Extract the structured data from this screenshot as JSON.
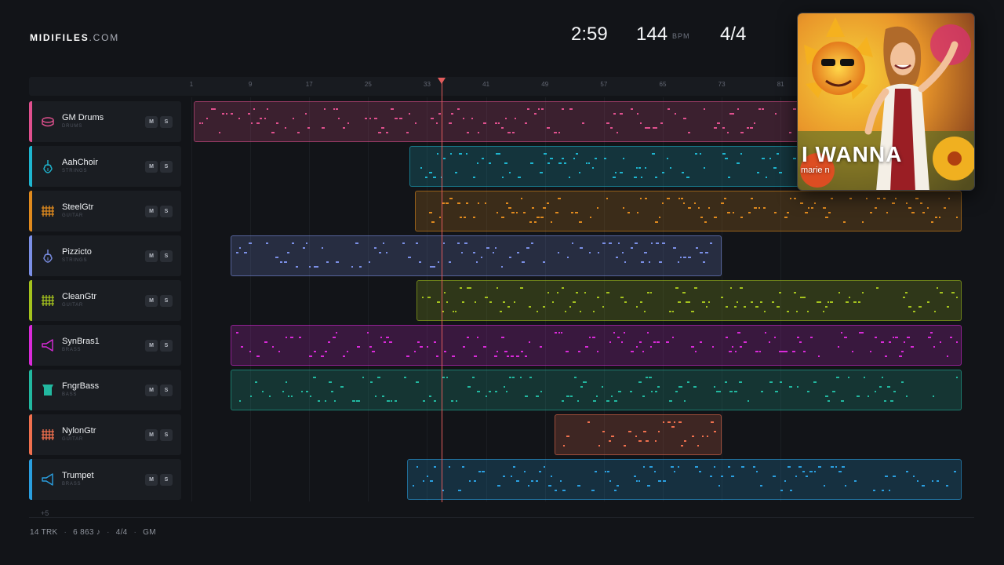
{
  "brand": {
    "bold": "MIDIFILES",
    "light": ".COM"
  },
  "transport": {
    "time": "2:59",
    "bpm": "144",
    "bpm_unit": "BPM",
    "time_signature": "4/4"
  },
  "ruler": {
    "bars": [
      "1",
      "9",
      "17",
      "25",
      "33",
      "41",
      "49",
      "57",
      "65",
      "73",
      "81"
    ]
  },
  "playhead": {
    "bar": 35
  },
  "tracks": [
    {
      "name": "GM Drums",
      "category": "DRUMS",
      "color": "#e0508e",
      "icon": "drum-icon",
      "mute": "M",
      "solo": "S"
    },
    {
      "name": "AahChoir",
      "category": "STRINGS",
      "color": "#1eb5cf",
      "icon": "violin-icon",
      "mute": "M",
      "solo": "S"
    },
    {
      "name": "SteelGtr",
      "category": "GUITAR",
      "color": "#e08a1e",
      "icon": "guitar-fretboard-icon",
      "mute": "M",
      "solo": "S"
    },
    {
      "name": "Pizzicto",
      "category": "STRINGS",
      "color": "#7b8fe6",
      "icon": "violin-icon",
      "mute": "M",
      "solo": "S"
    },
    {
      "name": "CleanGtr",
      "category": "GUITAR",
      "color": "#a4c21e",
      "icon": "guitar-fretboard-icon",
      "mute": "M",
      "solo": "S"
    },
    {
      "name": "SynBras1",
      "category": "BRASS",
      "color": "#d92ad9",
      "icon": "horn-icon",
      "mute": "M",
      "solo": "S"
    },
    {
      "name": "FngrBass",
      "category": "BASS",
      "color": "#22b8a0",
      "icon": "bass-amp-icon",
      "mute": "M",
      "solo": "S"
    },
    {
      "name": "NylonGtr",
      "category": "GUITAR",
      "color": "#f0704e",
      "icon": "guitar-fretboard-icon",
      "mute": "M",
      "solo": "S"
    },
    {
      "name": "Trumpet",
      "category": "BRASS",
      "color": "#2a9fe0",
      "icon": "horn-icon",
      "mute": "M",
      "solo": "S"
    }
  ],
  "more_tracks": "+5",
  "footer": {
    "tracks": "14 TRK",
    "notes": "6 863 ♪",
    "signature": "4/4",
    "standard": "GM"
  },
  "album": {
    "title": "I WANNA",
    "artist": "marie n"
  }
}
